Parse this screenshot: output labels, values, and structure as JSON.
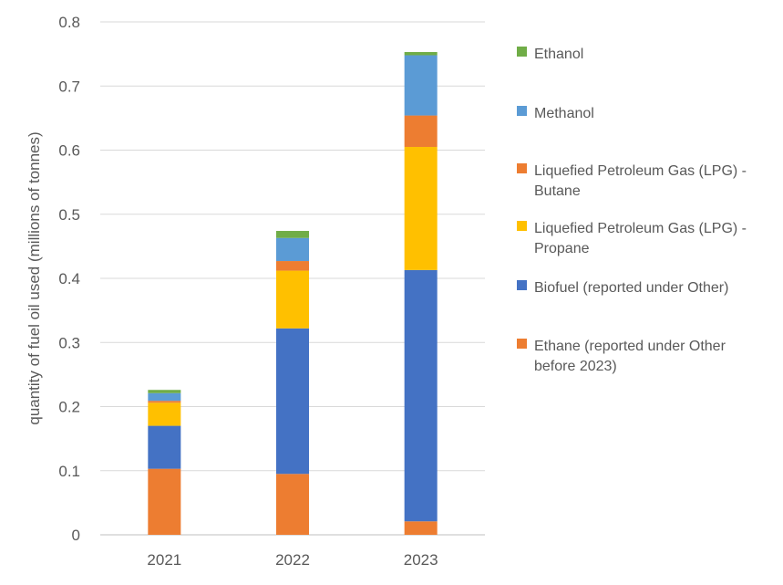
{
  "chart_data": {
    "type": "bar",
    "stacked": true,
    "categories": [
      "2021",
      "2022",
      "2023"
    ],
    "ylabel": "quantity of fuel oil used (millions of tonnes)",
    "xlabel": "",
    "ylim": [
      0,
      0.8
    ],
    "yticks": [
      "0",
      "0.1",
      "0.2",
      "0.3",
      "0.4",
      "0.5",
      "0.6",
      "0.7",
      "0.8"
    ],
    "grid": true,
    "legend_position": "right",
    "series": [
      {
        "name": "Ethane (reported under Other before 2023)",
        "color": "#ED7D31",
        "values": [
          0.103,
          0.095,
          0.021
        ]
      },
      {
        "name": "Biofuel (reported under Other)",
        "color": "#4472C4",
        "values": [
          0.067,
          0.227,
          0.392
        ]
      },
      {
        "name": "Liquefied Petroleum Gas (LPG) - Propane",
        "color": "#FFC000",
        "values": [
          0.036,
          0.09,
          0.192
        ]
      },
      {
        "name": "Liquefied Petroleum Gas (LPG) - Butane",
        "color": "#ED7D31",
        "values": [
          0.003,
          0.015,
          0.049
        ]
      },
      {
        "name": "Methanol",
        "color": "#5B9BD5",
        "values": [
          0.012,
          0.036,
          0.094
        ]
      },
      {
        "name": "Ethanol",
        "color": "#70AD47",
        "values": [
          0.005,
          0.011,
          0.005
        ]
      }
    ],
    "legend_lines": {
      "Ethanol": [
        "Ethanol"
      ],
      "Methanol": [
        "Methanol"
      ],
      "Liquefied Petroleum Gas (LPG) - Butane": [
        "Liquefied Petroleum Gas (LPG) -",
        "Butane"
      ],
      "Liquefied Petroleum Gas (LPG) - Propane": [
        "Liquefied Petroleum Gas (LPG) -",
        "Propane"
      ],
      "Biofuel (reported under Other)": [
        "Biofuel (reported under Other)"
      ],
      "Ethane (reported under Other before 2023)": [
        "Ethane (reported under Other",
        "before 2023)"
      ]
    },
    "legend_order": [
      "Ethanol",
      "Methanol",
      "Liquefied Petroleum Gas (LPG) - Butane",
      "Liquefied Petroleum Gas (LPG) - Propane",
      "Biofuel (reported under Other)",
      "Ethane (reported under Other before 2023)"
    ]
  }
}
